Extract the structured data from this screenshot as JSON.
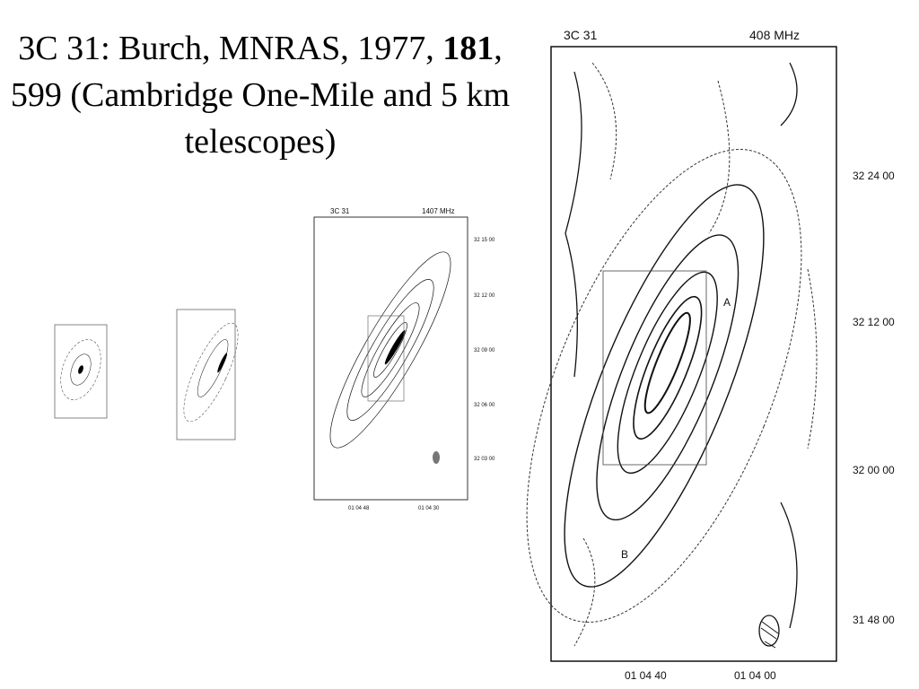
{
  "title": {
    "part1": "3C 31: Burch, MNRAS, 1977, ",
    "bold": "181",
    "part2": ", 599 (Cambridge One-Mile and 5 km telescopes)"
  },
  "map_1407": {
    "source": "3C 31",
    "frequency": "1407 MHz",
    "dec_labels": [
      "32 15 00",
      "32 12 00",
      "32 09 00",
      "32 06 00",
      "32 03 00"
    ],
    "ra_labels": [
      "01 04 48",
      "01 04 30"
    ]
  },
  "map_408": {
    "source": "3C 31",
    "frequency": "408 MHz",
    "dec_labels": [
      "32 24 00",
      "32 12 00",
      "32 00 00",
      "31 48 00"
    ],
    "ra_labels": [
      "01 04 40",
      "01 04 00"
    ],
    "component_labels": [
      "A",
      "B"
    ]
  }
}
